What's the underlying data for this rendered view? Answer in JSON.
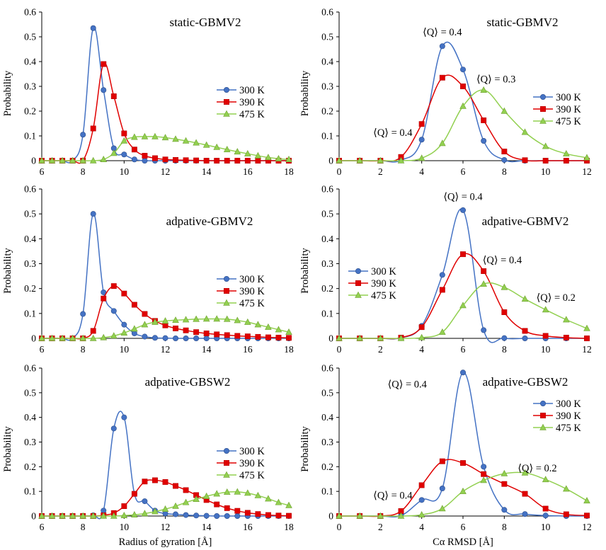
{
  "chart_data": [
    {
      "type": "line",
      "title": "static-GBMV2",
      "xlabel": "",
      "ylabel": "Probability",
      "xlim": [
        6,
        18
      ],
      "ylim": [
        0,
        0.6
      ],
      "xticks": [
        6,
        8,
        10,
        12,
        14,
        16,
        18
      ],
      "yticks": [
        0,
        0.1,
        0.2,
        0.3,
        0.4,
        0.5,
        0.6
      ],
      "legend_position": "right",
      "annotations": [],
      "series": [
        {
          "name": "300 K",
          "color": "#4472C4",
          "marker": "circle",
          "x": [
            6,
            6.5,
            7,
            7.5,
            8,
            8.5,
            9,
            9.5,
            10,
            10.5,
            11,
            11.5,
            12,
            12.5,
            13,
            13.5,
            14,
            14.5,
            15,
            15.5,
            16,
            16.5,
            17,
            17.5,
            18
          ],
          "y": [
            0,
            0,
            0,
            0,
            0.105,
            0.535,
            0.285,
            0.05,
            0.025,
            0.005,
            0,
            0,
            0,
            0,
            0,
            0,
            0,
            0,
            0,
            0,
            0,
            0,
            0,
            0,
            0
          ]
        },
        {
          "name": "390 K",
          "color": "#E00000",
          "marker": "square",
          "x": [
            6,
            6.5,
            7,
            7.5,
            8,
            8.5,
            9,
            9.5,
            10,
            10.5,
            11,
            11.5,
            12,
            12.5,
            13,
            13.5,
            14,
            14.5,
            15,
            15.5,
            16,
            16.5,
            17,
            17.5,
            18
          ],
          "y": [
            0,
            0,
            0,
            0,
            0,
            0.13,
            0.39,
            0.26,
            0.11,
            0.045,
            0.02,
            0.01,
            0.005,
            0.003,
            0.002,
            0.001,
            0,
            0,
            0,
            0,
            0,
            0,
            0,
            0,
            0
          ]
        },
        {
          "name": "475 K",
          "color": "#92D050",
          "marker": "triangle",
          "x": [
            6,
            6.5,
            7,
            7.5,
            8,
            8.5,
            9,
            9.5,
            10,
            10.5,
            11,
            11.5,
            12,
            12.5,
            13,
            13.5,
            14,
            14.5,
            15,
            15.5,
            16,
            16.5,
            17,
            17.5,
            18
          ],
          "y": [
            0,
            0,
            0,
            0,
            0,
            0,
            0.005,
            0.03,
            0.08,
            0.095,
            0.097,
            0.097,
            0.093,
            0.087,
            0.08,
            0.072,
            0.063,
            0.054,
            0.045,
            0.036,
            0.028,
            0.02,
            0.013,
            0.008,
            0.005
          ]
        }
      ]
    },
    {
      "type": "line",
      "title": "static-GBMV2",
      "xlabel": "",
      "ylabel": "Probability",
      "xlim": [
        0,
        12
      ],
      "ylim": [
        0,
        0.6
      ],
      "xticks": [
        0,
        2,
        4,
        6,
        8,
        10,
        12
      ],
      "yticks": [
        0,
        0.1,
        0.2,
        0.3,
        0.4,
        0.5,
        0.6
      ],
      "legend_position": "right",
      "annotations": [
        {
          "text": "⟨Q⟩ = 0.4",
          "x": 5,
          "y": 0.52
        },
        {
          "text": "⟨Q⟩ = 0.3",
          "x": 7.6,
          "y": 0.33
        },
        {
          "text": "⟨Q⟩ = 0.4",
          "x": 2.6,
          "y": 0.115
        }
      ],
      "series": [
        {
          "name": "300 K",
          "color": "#4472C4",
          "marker": "circle",
          "x": [
            0,
            1,
            2,
            3,
            4,
            5,
            6,
            7,
            8,
            9,
            10,
            11,
            12
          ],
          "y": [
            0,
            0,
            0,
            0.002,
            0.085,
            0.462,
            0.368,
            0.08,
            0.003,
            0,
            0,
            0,
            0
          ]
        },
        {
          "name": "390 K",
          "color": "#E00000",
          "marker": "square",
          "x": [
            0,
            1,
            2,
            3,
            4,
            5,
            6,
            7,
            8,
            9,
            10,
            11,
            12
          ],
          "y": [
            0,
            0,
            0,
            0.015,
            0.148,
            0.335,
            0.3,
            0.163,
            0.037,
            0.002,
            0,
            0,
            0
          ]
        },
        {
          "name": "475 K",
          "color": "#92D050",
          "marker": "triangle",
          "x": [
            0,
            1,
            2,
            3,
            4,
            5,
            6,
            7,
            8,
            9,
            10,
            11,
            12
          ],
          "y": [
            0,
            0,
            0,
            0,
            0.01,
            0.07,
            0.22,
            0.285,
            0.2,
            0.115,
            0.058,
            0.028,
            0.012
          ]
        }
      ]
    },
    {
      "type": "line",
      "title": "adpative-GBMV2",
      "xlabel": "",
      "ylabel": "Probability",
      "xlim": [
        6,
        18
      ],
      "ylim": [
        0,
        0.6
      ],
      "xticks": [
        6,
        8,
        10,
        12,
        14,
        16,
        18
      ],
      "yticks": [
        0,
        0.1,
        0.2,
        0.3,
        0.4,
        0.5,
        0.6
      ],
      "legend_position": "right",
      "annotations": [],
      "series": [
        {
          "name": "300 K",
          "color": "#4472C4",
          "marker": "circle",
          "x": [
            6,
            6.5,
            7,
            7.5,
            8,
            8.5,
            9,
            9.5,
            10,
            10.5,
            11,
            11.5,
            12,
            12.5,
            13,
            13.5,
            14,
            14.5,
            15,
            15.5,
            16,
            16.5,
            17,
            17.5,
            18
          ],
          "y": [
            0,
            0,
            0,
            0,
            0.098,
            0.5,
            0.185,
            0.11,
            0.055,
            0.02,
            0.007,
            0.002,
            0.001,
            0,
            0,
            0,
            0,
            0,
            0,
            0,
            0,
            0,
            0,
            0,
            0
          ]
        },
        {
          "name": "390 K",
          "color": "#E00000",
          "marker": "square",
          "x": [
            6,
            6.5,
            7,
            7.5,
            8,
            8.5,
            9,
            9.5,
            10,
            10.5,
            11,
            11.5,
            12,
            12.5,
            13,
            13.5,
            14,
            14.5,
            15,
            15.5,
            16,
            16.5,
            17,
            17.5,
            18
          ],
          "y": [
            0,
            0,
            0,
            0,
            0,
            0.03,
            0.16,
            0.21,
            0.18,
            0.135,
            0.098,
            0.07,
            0.052,
            0.04,
            0.032,
            0.025,
            0.02,
            0.016,
            0.013,
            0.01,
            0.008,
            0.006,
            0.004,
            0.003,
            0.002
          ]
        },
        {
          "name": "475 K",
          "color": "#92D050",
          "marker": "triangle",
          "x": [
            6,
            6.5,
            7,
            7.5,
            8,
            8.5,
            9,
            9.5,
            10,
            10.5,
            11,
            11.5,
            12,
            12.5,
            13,
            13.5,
            14,
            14.5,
            15,
            15.5,
            16,
            16.5,
            17,
            17.5,
            18
          ],
          "y": [
            0,
            0,
            0,
            0,
            0,
            0,
            0.003,
            0.01,
            0.022,
            0.038,
            0.055,
            0.065,
            0.07,
            0.073,
            0.075,
            0.077,
            0.078,
            0.078,
            0.077,
            0.072,
            0.065,
            0.055,
            0.045,
            0.035,
            0.025
          ]
        }
      ]
    },
    {
      "type": "line",
      "title": "adpative-GBMV2",
      "xlabel": "",
      "ylabel": "Probability",
      "xlim": [
        0,
        12
      ],
      "ylim": [
        0,
        0.6
      ],
      "xticks": [
        0,
        2,
        4,
        6,
        8,
        10,
        12
      ],
      "yticks": [
        0,
        0.1,
        0.2,
        0.3,
        0.4,
        0.5,
        0.6
      ],
      "legend_position": "left",
      "annotations": [
        {
          "text": "⟨Q⟩ = 0.4",
          "x": 6,
          "y": 0.57
        },
        {
          "text": "⟨Q⟩ = 0.4",
          "x": 7.9,
          "y": 0.315
        },
        {
          "text": "⟨Q⟩ = 0.2",
          "x": 10.5,
          "y": 0.165
        }
      ],
      "series": [
        {
          "name": "300 K",
          "color": "#4472C4",
          "marker": "circle",
          "x": [
            0,
            1,
            2,
            3,
            4,
            5,
            6,
            7,
            8,
            9,
            10,
            11,
            12
          ],
          "y": [
            0,
            0,
            0,
            0.002,
            0.05,
            0.255,
            0.515,
            0.033,
            0.001,
            0,
            0,
            0,
            0
          ]
        },
        {
          "name": "390 K",
          "color": "#E00000",
          "marker": "square",
          "x": [
            0,
            1,
            2,
            3,
            4,
            5,
            6,
            7,
            8,
            9,
            10,
            11,
            12
          ],
          "y": [
            0,
            0,
            0,
            0.003,
            0.045,
            0.195,
            0.338,
            0.27,
            0.105,
            0.03,
            0.01,
            0.003,
            0
          ]
        },
        {
          "name": "475 K",
          "color": "#92D050",
          "marker": "triangle",
          "x": [
            0,
            1,
            2,
            3,
            4,
            5,
            6,
            7,
            8,
            9,
            10,
            11,
            12
          ],
          "y": [
            0,
            0,
            0,
            0,
            0.003,
            0.025,
            0.132,
            0.218,
            0.205,
            0.158,
            0.115,
            0.075,
            0.04
          ]
        }
      ]
    },
    {
      "type": "line",
      "title": "adpative-GBSW2",
      "xlabel": "Radius of gyration [Å]",
      "ylabel": "Probability",
      "xlim": [
        6,
        18
      ],
      "ylim": [
        0,
        0.6
      ],
      "xticks": [
        6,
        8,
        10,
        12,
        14,
        16,
        18
      ],
      "yticks": [
        0,
        0.1,
        0.2,
        0.3,
        0.4,
        0.5,
        0.6
      ],
      "legend_position": "right",
      "annotations": [],
      "series": [
        {
          "name": "300 K",
          "color": "#4472C4",
          "marker": "circle",
          "x": [
            6,
            6.5,
            7,
            7.5,
            8,
            8.5,
            9,
            9.5,
            10,
            10.5,
            11,
            11.5,
            12,
            12.5,
            13,
            13.5,
            14,
            14.5,
            15,
            15.5,
            16,
            16.5,
            17,
            17.5,
            18
          ],
          "y": [
            0,
            0,
            0,
            0,
            0,
            0.003,
            0.022,
            0.355,
            0.4,
            0.09,
            0.06,
            0.022,
            0.01,
            0.007,
            0.004,
            0.002,
            0.001,
            0,
            0,
            0,
            0,
            0,
            0,
            0,
            0
          ]
        },
        {
          "name": "390 K",
          "color": "#E00000",
          "marker": "square",
          "x": [
            6,
            6.5,
            7,
            7.5,
            8,
            8.5,
            9,
            9.5,
            10,
            10.5,
            11,
            11.5,
            12,
            12.5,
            13,
            13.5,
            14,
            14.5,
            15,
            15.5,
            16,
            16.5,
            17,
            17.5,
            18
          ],
          "y": [
            0,
            0,
            0,
            0,
            0,
            0,
            0.003,
            0.012,
            0.04,
            0.09,
            0.14,
            0.145,
            0.138,
            0.122,
            0.105,
            0.085,
            0.065,
            0.047,
            0.032,
            0.021,
            0.013,
            0.008,
            0.004,
            0.002,
            0.001
          ]
        },
        {
          "name": "475 K",
          "color": "#92D050",
          "marker": "triangle",
          "x": [
            6,
            6.5,
            7,
            7.5,
            8,
            8.5,
            9,
            9.5,
            10,
            10.5,
            11,
            11.5,
            12,
            12.5,
            13,
            13.5,
            14,
            14.5,
            15,
            15.5,
            16,
            16.5,
            17,
            17.5,
            18
          ],
          "y": [
            0,
            0,
            0,
            0,
            0,
            0,
            0,
            0,
            0.002,
            0.005,
            0.01,
            0.018,
            0.028,
            0.04,
            0.055,
            0.068,
            0.08,
            0.09,
            0.097,
            0.098,
            0.093,
            0.083,
            0.07,
            0.055,
            0.043
          ]
        }
      ]
    },
    {
      "type": "line",
      "title": "adpative-GBSW2",
      "xlabel": "Cα RMSD [Å]",
      "ylabel": "Probability",
      "xlim": [
        0,
        12
      ],
      "ylim": [
        0,
        0.6
      ],
      "xticks": [
        0,
        2,
        4,
        6,
        8,
        10,
        12
      ],
      "yticks": [
        0,
        0.1,
        0.2,
        0.3,
        0.4,
        0.5,
        0.6
      ],
      "legend_position": "right",
      "annotations": [
        {
          "text": "⟨Q⟩ = 0.4",
          "x": 3.3,
          "y": 0.535
        },
        {
          "text": "⟨Q⟩ = 0.2",
          "x": 9.6,
          "y": 0.195
        },
        {
          "text": "⟨Q⟩ = 0.4",
          "x": 2.6,
          "y": 0.085
        }
      ],
      "series": [
        {
          "name": "300 K",
          "color": "#4472C4",
          "marker": "circle",
          "x": [
            0,
            1,
            2,
            3,
            4,
            5,
            6,
            7,
            8,
            9,
            10,
            11,
            12
          ],
          "y": [
            0,
            0,
            0,
            0.002,
            0.065,
            0.112,
            0.582,
            0.2,
            0.025,
            0.008,
            0.002,
            0,
            0
          ]
        },
        {
          "name": "390 K",
          "color": "#E00000",
          "marker": "square",
          "x": [
            0,
            1,
            2,
            3,
            4,
            5,
            6,
            7,
            8,
            9,
            10,
            11,
            12
          ],
          "y": [
            0,
            0,
            0,
            0.02,
            0.125,
            0.222,
            0.215,
            0.17,
            0.13,
            0.09,
            0.03,
            0.007,
            0.002
          ]
        },
        {
          "name": "475 K",
          "color": "#92D050",
          "marker": "triangle",
          "x": [
            0,
            1,
            2,
            3,
            4,
            5,
            6,
            7,
            8,
            9,
            10,
            11,
            12
          ],
          "y": [
            0,
            0,
            0,
            0,
            0.005,
            0.03,
            0.1,
            0.145,
            0.172,
            0.175,
            0.148,
            0.11,
            0.062
          ]
        }
      ]
    }
  ]
}
